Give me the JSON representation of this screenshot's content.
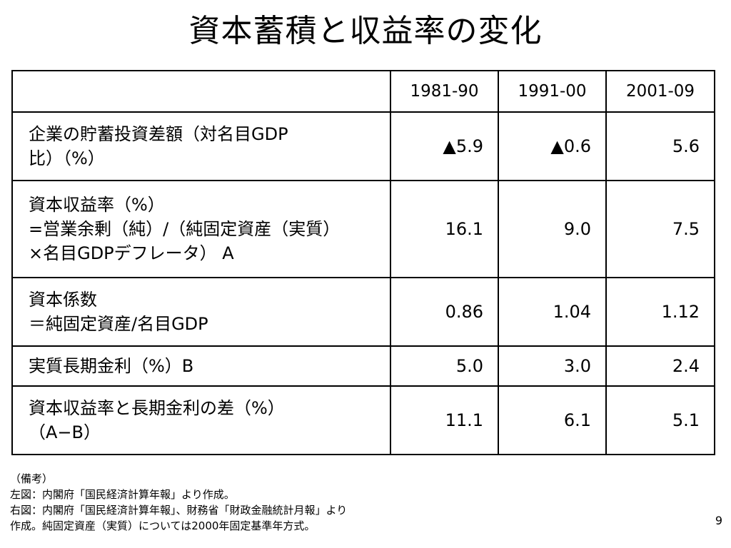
{
  "slide": {
    "title": "資本蓄積と収益率の変化",
    "page_number": "9"
  },
  "table": {
    "header": [
      "",
      "1981-90",
      "1991-00",
      "2001-09"
    ],
    "rows": [
      {
        "label_lines": [
          "企業の貯蓄投資差額（対名目GDP",
          "比）（%）"
        ],
        "values": [
          "▲5.9",
          "▲0.6",
          "5.6"
        ]
      },
      {
        "label_lines": [
          "資本収益率（%）",
          "=営業余剰（純）/（純固定資産（実質）",
          "×名目GDPデフレータ） A"
        ],
        "values": [
          "16.1",
          "9.0",
          "7.5"
        ]
      },
      {
        "label_lines": [
          "資本係数",
          "＝純固定資産/名目GDP"
        ],
        "values": [
          "0.86",
          "1.04",
          "1.12"
        ]
      },
      {
        "label_lines": [
          "実質長期金利（%）B"
        ],
        "values": [
          "5.0",
          "3.0",
          "2.4"
        ]
      },
      {
        "label_lines": [
          "資本収益率と長期金利の差（%）",
          "（A−B）"
        ],
        "values": [
          "11.1",
          "6.1",
          "5.1"
        ]
      }
    ]
  },
  "notes": {
    "lines": [
      "（備考）",
      "左図：内閣府「国民経済計算年報」より作成。",
      "右図：内閣府「国民経済計算年報」、財務省「財政金融統計月報」より",
      "作成。純固定資産（実質）については2000年固定基準年方式。"
    ]
  }
}
